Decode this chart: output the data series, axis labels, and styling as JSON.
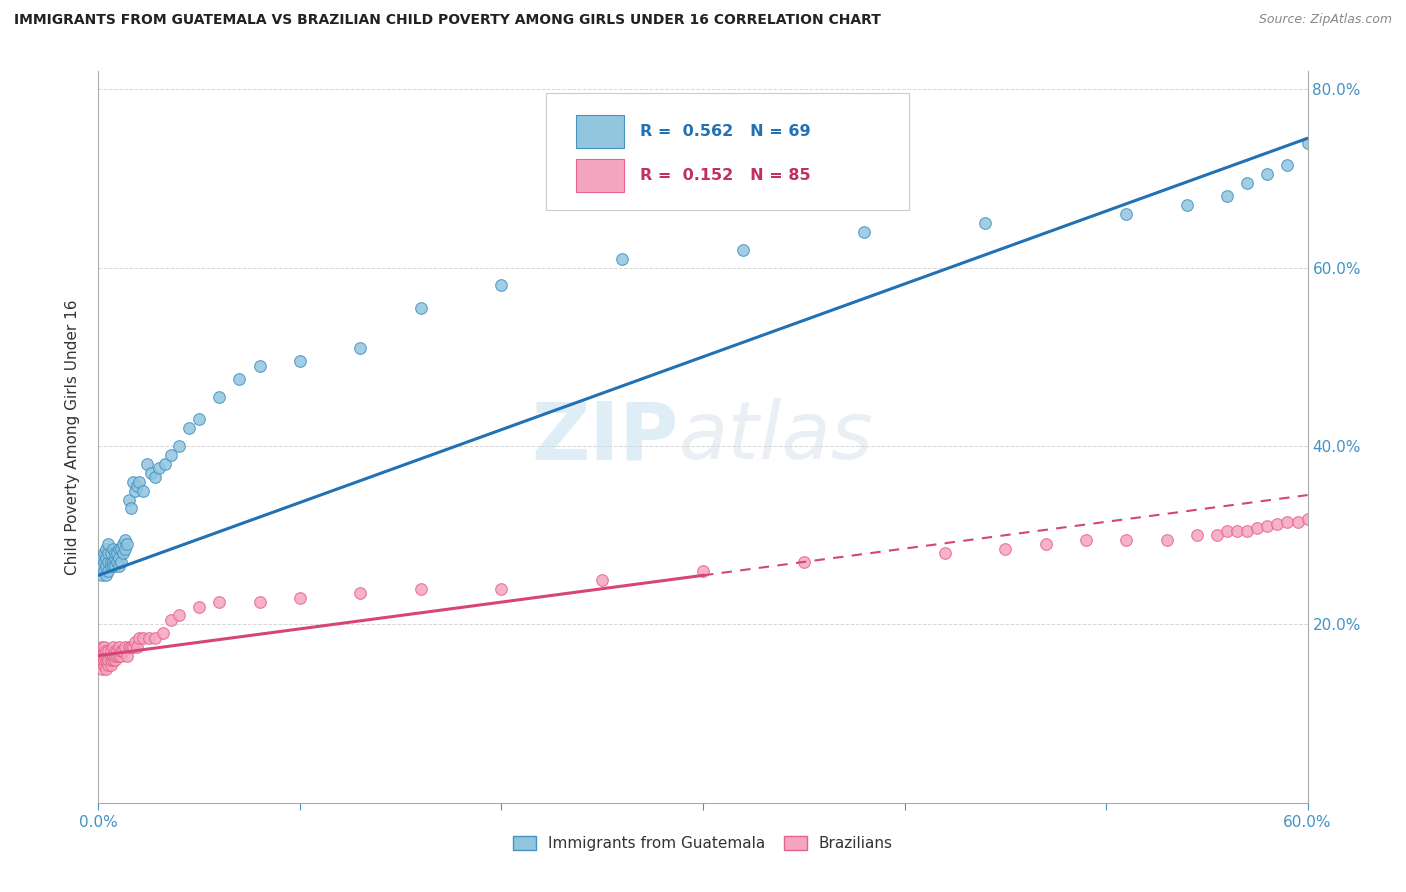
{
  "title": "IMMIGRANTS FROM GUATEMALA VS BRAZILIAN CHILD POVERTY AMONG GIRLS UNDER 16 CORRELATION CHART",
  "source": "Source: ZipAtlas.com",
  "ylabel": "Child Poverty Among Girls Under 16",
  "xlim": [
    0.0,
    0.6
  ],
  "ylim": [
    0.0,
    0.82
  ],
  "blue_color": "#92c5de",
  "pink_color": "#f4a6c0",
  "blue_edge_color": "#4393c3",
  "pink_edge_color": "#e8638a",
  "blue_line_color": "#2171b5",
  "pink_line_color": "#d6457a",
  "legend1_label": "Immigrants from Guatemala",
  "legend2_label": "Brazilians",
  "watermark": "ZIPatlas",
  "blue_scatter_x": [
    0.001,
    0.002,
    0.002,
    0.003,
    0.003,
    0.003,
    0.004,
    0.004,
    0.004,
    0.004,
    0.005,
    0.005,
    0.005,
    0.005,
    0.006,
    0.006,
    0.006,
    0.007,
    0.007,
    0.007,
    0.008,
    0.008,
    0.008,
    0.009,
    0.009,
    0.01,
    0.01,
    0.01,
    0.011,
    0.011,
    0.012,
    0.012,
    0.013,
    0.013,
    0.014,
    0.015,
    0.016,
    0.017,
    0.018,
    0.019,
    0.02,
    0.022,
    0.024,
    0.026,
    0.028,
    0.03,
    0.033,
    0.036,
    0.04,
    0.045,
    0.05,
    0.06,
    0.07,
    0.08,
    0.1,
    0.13,
    0.16,
    0.2,
    0.26,
    0.32,
    0.38,
    0.44,
    0.51,
    0.54,
    0.56,
    0.57,
    0.58,
    0.59,
    0.6
  ],
  "blue_scatter_y": [
    0.265,
    0.275,
    0.255,
    0.26,
    0.27,
    0.28,
    0.265,
    0.275,
    0.285,
    0.255,
    0.27,
    0.28,
    0.26,
    0.29,
    0.265,
    0.27,
    0.28,
    0.27,
    0.285,
    0.265,
    0.275,
    0.28,
    0.265,
    0.28,
    0.27,
    0.285,
    0.275,
    0.265,
    0.285,
    0.27,
    0.28,
    0.29,
    0.295,
    0.285,
    0.29,
    0.34,
    0.33,
    0.36,
    0.35,
    0.355,
    0.36,
    0.35,
    0.38,
    0.37,
    0.365,
    0.375,
    0.38,
    0.39,
    0.4,
    0.42,
    0.43,
    0.455,
    0.475,
    0.49,
    0.495,
    0.51,
    0.555,
    0.58,
    0.61,
    0.62,
    0.64,
    0.65,
    0.66,
    0.67,
    0.68,
    0.695,
    0.705,
    0.715,
    0.74
  ],
  "pink_scatter_x": [
    0.001,
    0.001,
    0.001,
    0.002,
    0.002,
    0.002,
    0.002,
    0.003,
    0.003,
    0.003,
    0.003,
    0.003,
    0.004,
    0.004,
    0.004,
    0.004,
    0.005,
    0.005,
    0.005,
    0.005,
    0.006,
    0.006,
    0.006,
    0.006,
    0.007,
    0.007,
    0.007,
    0.008,
    0.008,
    0.008,
    0.009,
    0.009,
    0.01,
    0.01,
    0.011,
    0.011,
    0.012,
    0.013,
    0.014,
    0.015,
    0.016,
    0.017,
    0.018,
    0.019,
    0.02,
    0.022,
    0.025,
    0.028,
    0.032,
    0.036,
    0.04,
    0.05,
    0.06,
    0.08,
    0.1,
    0.13,
    0.16,
    0.2,
    0.25,
    0.3,
    0.35,
    0.42,
    0.45,
    0.47,
    0.49,
    0.51,
    0.53,
    0.545,
    0.555,
    0.56,
    0.565,
    0.57,
    0.575,
    0.58,
    0.585,
    0.59,
    0.595,
    0.6,
    0.605,
    0.61,
    0.615,
    0.62,
    0.625,
    0.63,
    0.635
  ],
  "pink_scatter_y": [
    0.165,
    0.155,
    0.17,
    0.16,
    0.15,
    0.165,
    0.175,
    0.155,
    0.165,
    0.17,
    0.16,
    0.175,
    0.15,
    0.16,
    0.165,
    0.17,
    0.155,
    0.165,
    0.17,
    0.16,
    0.155,
    0.165,
    0.17,
    0.16,
    0.16,
    0.165,
    0.175,
    0.16,
    0.165,
    0.17,
    0.165,
    0.17,
    0.165,
    0.175,
    0.165,
    0.17,
    0.17,
    0.175,
    0.165,
    0.175,
    0.175,
    0.175,
    0.18,
    0.175,
    0.185,
    0.185,
    0.185,
    0.185,
    0.19,
    0.205,
    0.21,
    0.22,
    0.225,
    0.225,
    0.23,
    0.235,
    0.24,
    0.24,
    0.25,
    0.26,
    0.27,
    0.28,
    0.285,
    0.29,
    0.295,
    0.295,
    0.295,
    0.3,
    0.3,
    0.305,
    0.305,
    0.305,
    0.308,
    0.31,
    0.312,
    0.315,
    0.315,
    0.318,
    0.32,
    0.322,
    0.325,
    0.325,
    0.328,
    0.33,
    0.332
  ],
  "blue_line_x0": 0.0,
  "blue_line_y0": 0.255,
  "blue_line_x1": 0.6,
  "blue_line_y1": 0.745,
  "pink_line_solid_x0": 0.0,
  "pink_line_solid_y0": 0.165,
  "pink_line_solid_x1": 0.3,
  "pink_line_solid_y1": 0.255,
  "pink_line_dash_x0": 0.3,
  "pink_line_dash_y0": 0.255,
  "pink_line_dash_x1": 0.6,
  "pink_line_dash_y1": 0.345
}
